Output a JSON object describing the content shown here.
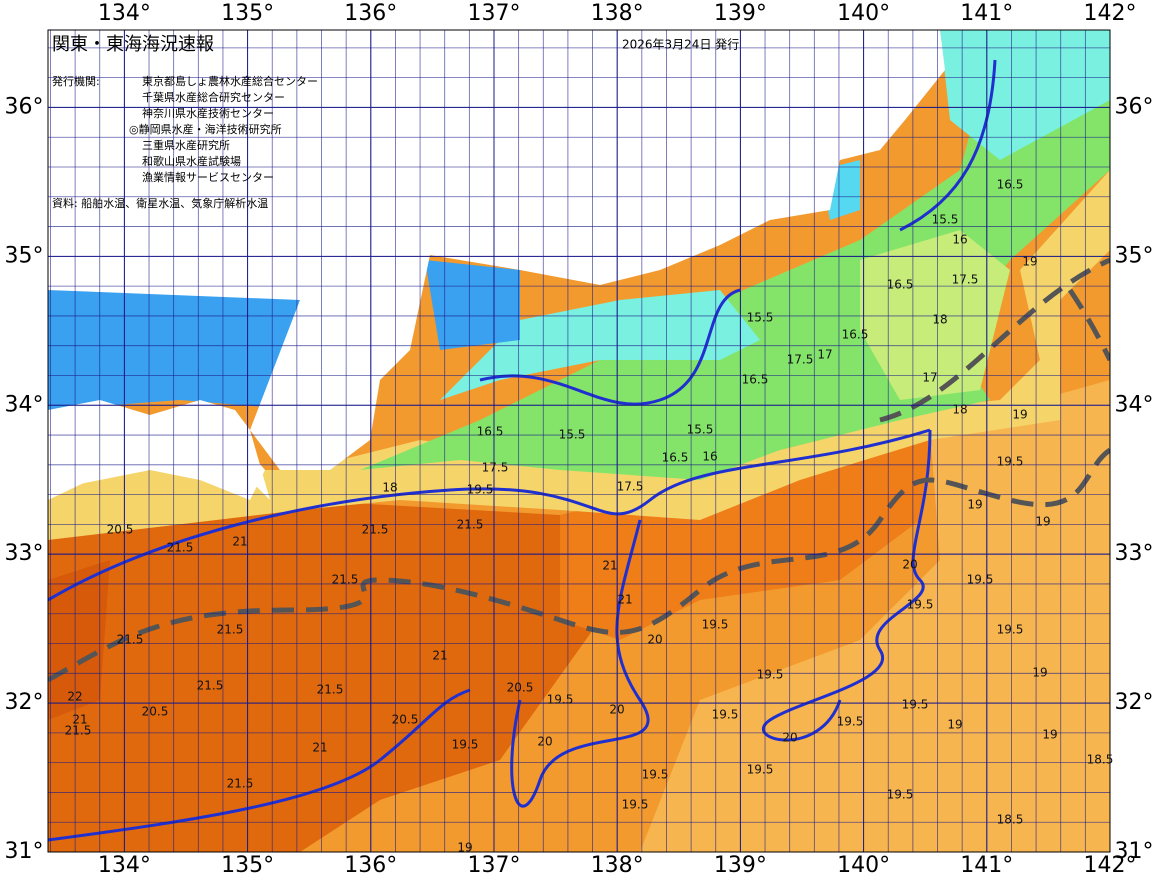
{
  "header": {
    "title": "関東・東海海況速報",
    "date": "2026年3月24日 発行",
    "issuer_label": "発行機関:",
    "issuers": [
      "東京都島しょ農林水産総合センター",
      "千葉県水産総合研究センター",
      "神奈川県水産技術センター",
      "◎静岡県水産・海洋技術研究所",
      "三重県水産研究所",
      "和歌山県水産試験場",
      "漁業情報サービスセンター"
    ],
    "source": "資料: 船舶水温、衛星水温、気象庁解析水温"
  },
  "map": {
    "lonlim": [
      133.38,
      142
    ],
    "latlim": [
      31,
      36.52
    ],
    "lonticks": [
      {
        "value": 134,
        "label": "134°"
      },
      {
        "value": 135,
        "label": "135°"
      },
      {
        "value": 136,
        "label": "136°"
      },
      {
        "value": 137,
        "label": "137°"
      },
      {
        "value": 138,
        "label": "138°"
      },
      {
        "value": 139,
        "label": "139°"
      },
      {
        "value": 140,
        "label": "140°"
      },
      {
        "value": 141,
        "label": "141°"
      },
      {
        "value": 142,
        "label": "142°"
      }
    ],
    "latticks": [
      {
        "value": 31,
        "label": "31°"
      },
      {
        "value": 32,
        "label": "32°"
      },
      {
        "value": 33,
        "label": "33°"
      },
      {
        "value": 34,
        "label": "34°"
      },
      {
        "value": 35,
        "label": "35°"
      },
      {
        "value": 36,
        "label": "36°"
      }
    ],
    "contour_labels": [
      16.5,
      15.5,
      16,
      16.5,
      18,
      17.5,
      19,
      15.5,
      16.5,
      17.5,
      17,
      16.5,
      17,
      18,
      19,
      19.5,
      19,
      19,
      15.5,
      15.5,
      16.5,
      17.5,
      16.5,
      16,
      17.5,
      19.5,
      18,
      20.5,
      21.5,
      21,
      21.5,
      21.5,
      21,
      21,
      21.5,
      21.5,
      21.5,
      21,
      21.5,
      21.5,
      20.5,
      21,
      21.5,
      20.5,
      19.5,
      20.5,
      19.5,
      20,
      20,
      19.5,
      19.5,
      19.5,
      19.5,
      19.5,
      19.5,
      20,
      19.5,
      19.5,
      19.5,
      19,
      19.5,
      19,
      19,
      18.5,
      19.5,
      18.5,
      19.5,
      20,
      20,
      21,
      22,
      21.5,
      19
    ]
  }
}
